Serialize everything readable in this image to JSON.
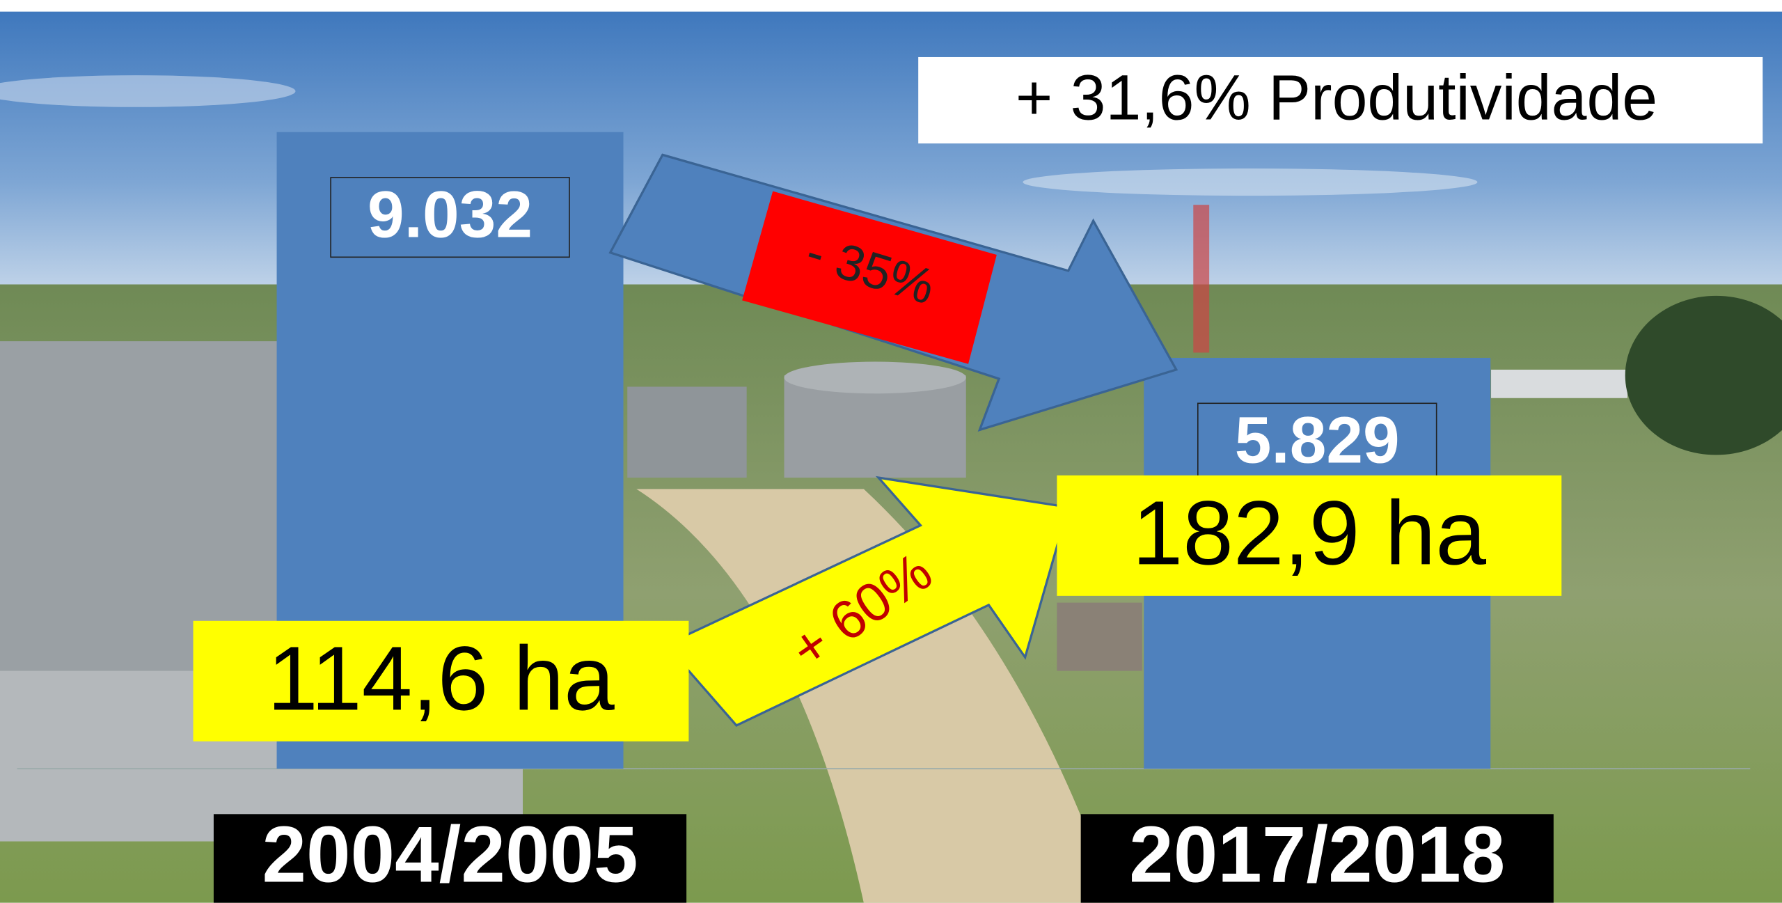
{
  "chart_data": {
    "type": "bar",
    "title": "+ 31,6% Produtividade",
    "categories": [
      "2004/2005",
      "2017/2018"
    ],
    "values": [
      9032,
      5829
    ],
    "value_labels": [
      "9.032",
      "5.829"
    ],
    "color": "#4f81bd",
    "area_labels": [
      "114,6 ha",
      "182,9 ha"
    ],
    "annotations": [
      "- 35%",
      "+ 60%"
    ]
  }
}
